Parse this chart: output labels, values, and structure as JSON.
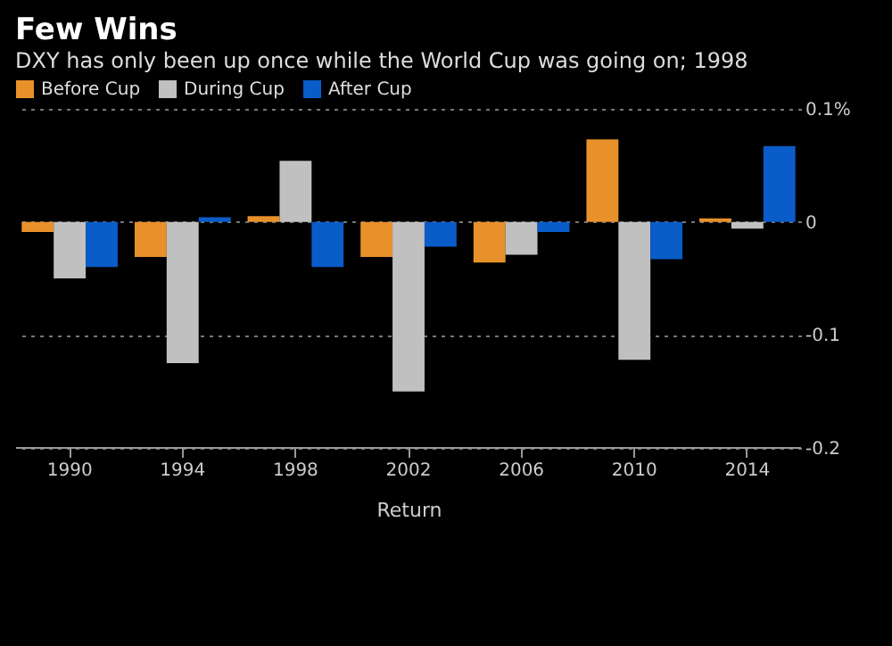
{
  "chart_data": {
    "type": "bar",
    "title": "Few Wins",
    "subtitle": "DXY has only been up once while the World Cup was going on; 1998",
    "xlabel": "Return",
    "categories": [
      "1990",
      "1994",
      "1998",
      "2002",
      "2006",
      "2010",
      "2014"
    ],
    "series": [
      {
        "name": "Before Cup",
        "color": "#e8912a",
        "values": [
          -0.009,
          -0.031,
          0.005,
          -0.031,
          -0.036,
          0.073,
          0.003
        ]
      },
      {
        "name": "During Cup",
        "color": "#c0c0c0",
        "values": [
          -0.05,
          -0.125,
          0.054,
          -0.15,
          -0.029,
          -0.122,
          -0.006
        ]
      },
      {
        "name": "After Cup",
        "color": "#0a5cc8",
        "values": [
          -0.04,
          0.004,
          -0.04,
          -0.022,
          -0.009,
          -0.033,
          0.067
        ]
      }
    ],
    "ylim": [
      -0.2,
      0.1
    ],
    "yticks": [
      -0.2,
      -0.1,
      0,
      {
        "value": 0.1,
        "label": "0.1%"
      }
    ],
    "grid": "y",
    "legend": "top left"
  }
}
